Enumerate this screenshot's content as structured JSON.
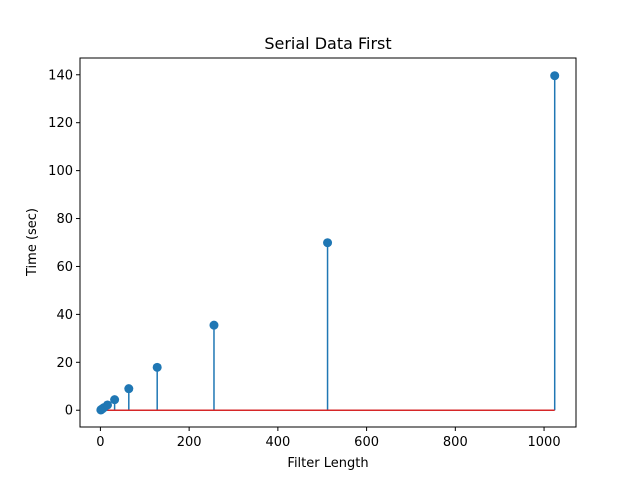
{
  "chart_data": {
    "type": "stem",
    "title": "Serial Data First",
    "xlabel": "Filter Length",
    "ylabel": "Time (sec)",
    "xlim": [
      -46,
      1072
    ],
    "ylim": [
      -7,
      147
    ],
    "xticks": [
      0,
      200,
      400,
      600,
      800,
      1000
    ],
    "xtick_labels": [
      "0",
      "200",
      "400",
      "600",
      "800",
      "1000"
    ],
    "yticks": [
      0,
      20,
      40,
      60,
      80,
      100,
      120,
      140
    ],
    "ytick_labels": [
      "0",
      "20",
      "40",
      "60",
      "80",
      "100",
      "120",
      "140"
    ],
    "grid": false,
    "x": [
      1,
      2,
      4,
      8,
      16,
      32,
      64,
      128,
      256,
      512,
      1024
    ],
    "values": [
      0.1,
      0.3,
      0.55,
      1.1,
      2.2,
      4.4,
      9.0,
      17.9,
      35.5,
      69.9,
      139.6
    ],
    "baseline": 0,
    "colors": {
      "stem": "#1f77b4",
      "marker": "#1f77b4",
      "baseline": "#d62728"
    }
  }
}
